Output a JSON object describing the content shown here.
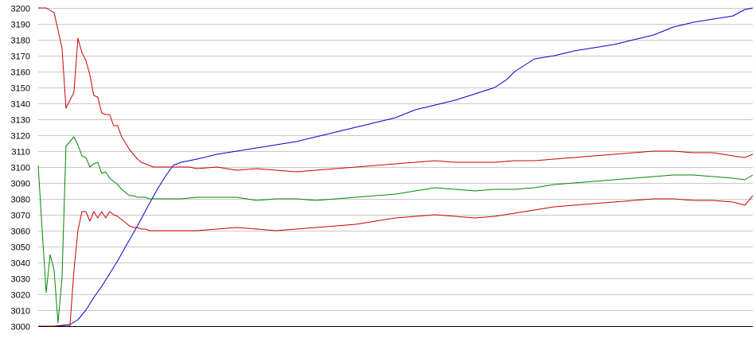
{
  "chart_data": {
    "type": "line",
    "title": "",
    "xlabel": "",
    "ylabel": "",
    "ylim": [
      3000,
      3200
    ],
    "y_ticks": [
      3000,
      3010,
      3020,
      3030,
      3040,
      3050,
      3060,
      3070,
      3080,
      3090,
      3100,
      3110,
      3120,
      3130,
      3140,
      3150,
      3160,
      3170,
      3180,
      3190,
      3200
    ],
    "xlim": [
      0,
      180
    ],
    "grid": true,
    "legend": "none",
    "series": [
      {
        "color": "#0000cc",
        "x": [
          0,
          4,
          8,
          10,
          12,
          14,
          16,
          18,
          20,
          22,
          25,
          28,
          30,
          32,
          34,
          36,
          38,
          40,
          45,
          50,
          55,
          60,
          65,
          70,
          75,
          80,
          85,
          90,
          95,
          100,
          105,
          110,
          115,
          118,
          120,
          125,
          130,
          135,
          140,
          145,
          150,
          155,
          160,
          165,
          170,
          175,
          178,
          180
        ],
        "y": [
          3000,
          3000,
          3001,
          3004,
          3010,
          3018,
          3025,
          3033,
          3041,
          3050,
          3063,
          3077,
          3086,
          3094,
          3101,
          3103,
          3104,
          3105,
          3108,
          3110,
          3112,
          3114,
          3116,
          3119,
          3122,
          3125,
          3128,
          3131,
          3136,
          3139,
          3142,
          3146,
          3150,
          3155,
          3160,
          3168,
          3170,
          3173,
          3175,
          3177,
          3180,
          3183,
          3188,
          3191,
          3193,
          3195,
          3199,
          3200
        ]
      },
      {
        "color": "#cc0000",
        "x": [
          0,
          2,
          4,
          6,
          7,
          8,
          9,
          10,
          11,
          12,
          13,
          14,
          15,
          16,
          17,
          18,
          19,
          20,
          21,
          22,
          23,
          24,
          25,
          26,
          27,
          28,
          29,
          30,
          31,
          32,
          33,
          34,
          35,
          36,
          37,
          38,
          40,
          45,
          50,
          55,
          60,
          65,
          70,
          75,
          80,
          85,
          90,
          95,
          100,
          105,
          110,
          115,
          120,
          125,
          130,
          135,
          140,
          145,
          150,
          155,
          160,
          165,
          170,
          175,
          178,
          180
        ],
        "y": [
          3200,
          3200,
          3197,
          3175,
          3137,
          3142,
          3147,
          3181,
          3172,
          3167,
          3158,
          3145,
          3144,
          3134,
          3133,
          3133,
          3126,
          3126,
          3119,
          3115,
          3111,
          3108,
          3105,
          3103,
          3102,
          3101,
          3100,
          3100,
          3100,
          3100,
          3100,
          3100,
          3100,
          3100,
          3100,
          3100,
          3099,
          3100,
          3098,
          3099,
          3098,
          3097,
          3098,
          3099,
          3100,
          3101,
          3102,
          3103,
          3104,
          3103,
          3103,
          3103,
          3104,
          3104,
          3105,
          3106,
          3107,
          3108,
          3109,
          3110,
          3110,
          3109,
          3109,
          3107,
          3106,
          3108
        ]
      },
      {
        "color": "#008800",
        "x": [
          0,
          1,
          2,
          3,
          4,
          5,
          6,
          7,
          8,
          9,
          10,
          11,
          12,
          13,
          14,
          15,
          16,
          17,
          18,
          19,
          20,
          21,
          22,
          23,
          24,
          25,
          26,
          27,
          28,
          29,
          30,
          31,
          32,
          33,
          34,
          36,
          40,
          45,
          50,
          55,
          60,
          65,
          70,
          75,
          80,
          85,
          90,
          95,
          100,
          105,
          110,
          115,
          120,
          125,
          130,
          135,
          140,
          145,
          150,
          155,
          160,
          165,
          170,
          175,
          178,
          180
        ],
        "y": [
          3101,
          3060,
          3021,
          3045,
          3035,
          3002,
          3030,
          3113,
          3116,
          3119,
          3114,
          3107,
          3106,
          3100,
          3102,
          3103,
          3096,
          3097,
          3093,
          3091,
          3089,
          3086,
          3084,
          3082,
          3082,
          3081,
          3081,
          3081,
          3080,
          3080,
          3080,
          3080,
          3080,
          3080,
          3080,
          3080,
          3081,
          3081,
          3081,
          3079,
          3080,
          3080,
          3079,
          3080,
          3081,
          3082,
          3083,
          3085,
          3087,
          3086,
          3085,
          3086,
          3086,
          3087,
          3089,
          3090,
          3091,
          3092,
          3093,
          3094,
          3095,
          3095,
          3094,
          3093,
          3092,
          3095
        ]
      },
      {
        "color": "#cc0000",
        "x": [
          0,
          2,
          4,
          6,
          7,
          8,
          9,
          10,
          11,
          12,
          13,
          14,
          15,
          16,
          17,
          18,
          19,
          20,
          21,
          22,
          23,
          24,
          25,
          26,
          27,
          28,
          29,
          30,
          31,
          32,
          33,
          34,
          35,
          36,
          37,
          38,
          40,
          45,
          50,
          55,
          60,
          65,
          70,
          75,
          80,
          85,
          90,
          95,
          100,
          105,
          110,
          115,
          120,
          125,
          130,
          135,
          140,
          145,
          150,
          155,
          160,
          165,
          170,
          175,
          178,
          180
        ],
        "y": [
          3000,
          3000,
          3000,
          3000,
          3000,
          3000,
          3035,
          3060,
          3072,
          3072,
          3066,
          3072,
          3068,
          3072,
          3068,
          3072,
          3070,
          3069,
          3067,
          3065,
          3063,
          3062,
          3062,
          3061,
          3061,
          3060,
          3060,
          3060,
          3060,
          3060,
          3060,
          3060,
          3060,
          3060,
          3060,
          3060,
          3060,
          3061,
          3062,
          3061,
          3060,
          3061,
          3062,
          3063,
          3064,
          3066,
          3068,
          3069,
          3070,
          3069,
          3068,
          3069,
          3071,
          3073,
          3075,
          3076,
          3077,
          3078,
          3079,
          3080,
          3080,
          3079,
          3079,
          3078,
          3076,
          3082
        ]
      }
    ]
  }
}
